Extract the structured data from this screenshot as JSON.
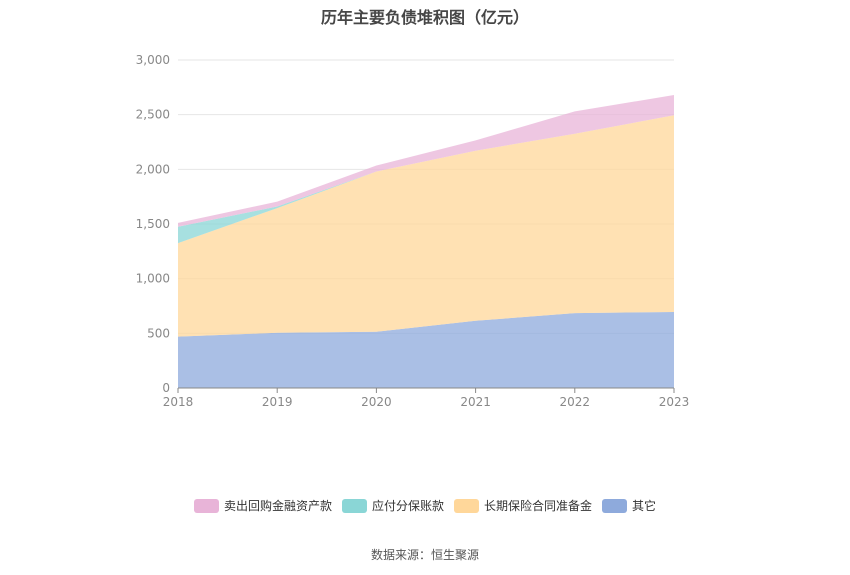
{
  "title": "历年主要负债堆积图（亿元）",
  "source_text": "数据来源：恒生聚源",
  "chart_data": {
    "type": "area",
    "stacked": true,
    "title": "历年主要负债堆积图（亿元）",
    "x": [
      "2018",
      "2019",
      "2020",
      "2021",
      "2022",
      "2023"
    ],
    "ylim": [
      0,
      3000
    ],
    "yticks": [
      0,
      500,
      1000,
      1500,
      2000,
      2500,
      3000
    ],
    "ytick_labels": [
      "0",
      "500",
      "1,000",
      "1,500",
      "2,000",
      "2,500",
      "3,000"
    ],
    "grid": true,
    "legend_position": "bottom",
    "series": [
      {
        "name": "其它",
        "color": "#8eaadc",
        "values": [
          470,
          505,
          515,
          615,
          685,
          695
        ]
      },
      {
        "name": "长期保险合同准备金",
        "color": "#ffd79a",
        "values": [
          855,
          1140,
          1465,
          1555,
          1640,
          1800
        ]
      },
      {
        "name": "应付分保账款",
        "color": "#8ad6d6",
        "values": [
          150,
          15,
          0,
          0,
          0,
          0
        ]
      },
      {
        "name": "卖出回购金融资产款",
        "color": "#e8b4d8",
        "values": [
          35,
          45,
          55,
          95,
          205,
          185
        ]
      }
    ],
    "legend_order": [
      "卖出回购金融资产款",
      "应付分保账款",
      "长期保险合同准备金",
      "其它"
    ]
  }
}
